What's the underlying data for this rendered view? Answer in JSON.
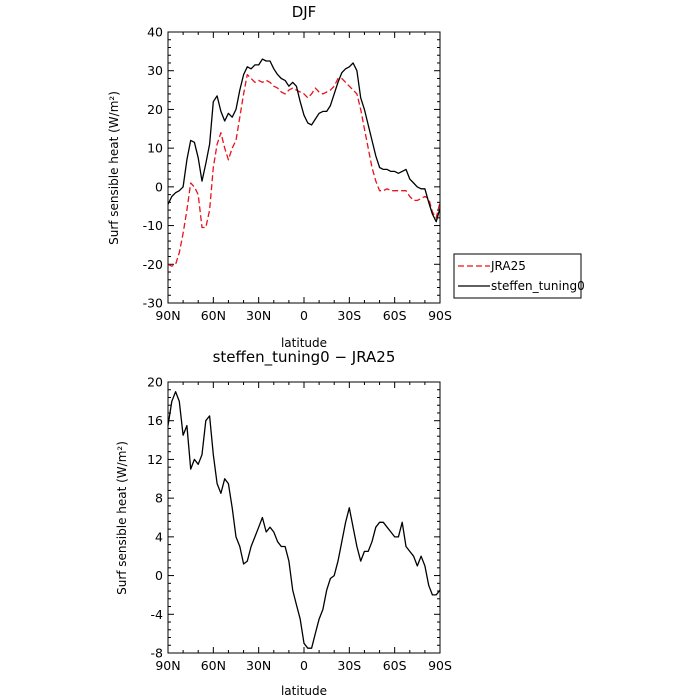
{
  "chart_data": [
    {
      "type": "line",
      "title": "DJF",
      "xlabel": "latitude",
      "ylabel": "Surf sensible heat (W/m²)",
      "xlim": [
        90,
        -90
      ],
      "ylim": [
        -30,
        40
      ],
      "x_ticks": [
        90,
        60,
        30,
        0,
        -30,
        -60,
        -90
      ],
      "x_tick_labels": [
        "90N",
        "60N",
        "30N",
        "0",
        "30S",
        "60S",
        "90S"
      ],
      "y_ticks": [
        -30,
        -20,
        -10,
        0,
        10,
        20,
        30,
        40
      ],
      "y_tick_labels": [
        "-30",
        "-20",
        "-10",
        "0",
        "10",
        "20",
        "30",
        "40"
      ],
      "legend": "right-outside",
      "series": [
        {
          "name": "JRA25",
          "color": "#e8121b",
          "dash": "dashed",
          "x": [
            90,
            87.5,
            85,
            82.5,
            80,
            77.5,
            75,
            72.5,
            70,
            67.5,
            65,
            62.5,
            60,
            57.5,
            55,
            52.5,
            50,
            47.5,
            45,
            42.5,
            40,
            37.5,
            35,
            32.5,
            30,
            27.5,
            25,
            22.5,
            20,
            17.5,
            15,
            12.5,
            10,
            7.5,
            5,
            2.5,
            0,
            -2.5,
            -5,
            -7.5,
            -10,
            -12.5,
            -15,
            -17.5,
            -20,
            -22.5,
            -25,
            -27.5,
            -30,
            -32.5,
            -35,
            -37.5,
            -40,
            -42.5,
            -45,
            -47.5,
            -50,
            -52.5,
            -55,
            -57.5,
            -60,
            -62.5,
            -65,
            -67.5,
            -70,
            -72.5,
            -75,
            -77.5,
            -80,
            -82.5,
            -85,
            -87.5,
            -90
          ],
          "values": [
            -20,
            -20.5,
            -20,
            -17,
            -12,
            -6,
            1,
            0,
            -2,
            -10.5,
            -10.5,
            -6,
            5,
            11,
            14,
            10,
            7,
            10,
            12,
            18,
            24,
            29,
            28,
            27,
            27.5,
            27,
            27.5,
            27,
            26,
            25.5,
            24.5,
            24,
            25,
            25.5,
            25,
            24.5,
            24,
            23,
            24,
            25.5,
            24.5,
            24,
            24.5,
            25,
            26,
            28,
            28,
            27,
            26,
            25,
            24,
            20,
            15,
            10,
            5,
            1.5,
            -1,
            -1,
            -0.5,
            -1,
            -1,
            -1,
            -1,
            -1,
            -2.5,
            -3.5,
            -3.5,
            -3,
            -2.5,
            -3,
            -6.5,
            -8,
            -4
          ]
        },
        {
          "name": "steffen_tuning0",
          "color": "#000000",
          "dash": "solid",
          "x": [
            90,
            87.5,
            85,
            82.5,
            80,
            77.5,
            75,
            72.5,
            70,
            67.5,
            65,
            62.5,
            60,
            57.5,
            55,
            52.5,
            50,
            47.5,
            45,
            42.5,
            40,
            37.5,
            35,
            32.5,
            30,
            27.5,
            25,
            22.5,
            20,
            17.5,
            15,
            12.5,
            10,
            7.5,
            5,
            2.5,
            0,
            -2.5,
            -5,
            -7.5,
            -10,
            -12.5,
            -15,
            -17.5,
            -20,
            -22.5,
            -25,
            -27.5,
            -30,
            -32.5,
            -35,
            -37.5,
            -40,
            -42.5,
            -45,
            -47.5,
            -50,
            -52.5,
            -55,
            -57.5,
            -60,
            -62.5,
            -65,
            -67.5,
            -70,
            -72.5,
            -75,
            -77.5,
            -80,
            -82.5,
            -85,
            -87.5,
            -90
          ],
          "values": [
            -4.5,
            -2.5,
            -1.5,
            -1,
            0,
            7,
            12,
            11.5,
            7.5,
            1.5,
            6,
            11,
            22,
            23.5,
            19.5,
            17,
            19,
            18,
            20,
            25,
            29,
            31,
            30.5,
            31.5,
            31.5,
            33,
            32.5,
            32.5,
            30.5,
            29,
            28,
            27.5,
            26,
            27,
            26,
            22,
            18.5,
            16.5,
            16,
            17.5,
            19,
            19.5,
            19.5,
            21,
            24,
            27,
            29.5,
            30.5,
            31,
            32,
            30,
            23,
            20,
            16,
            12,
            8,
            5,
            4.5,
            4.5,
            4,
            4,
            3.5,
            4,
            4.5,
            2,
            1,
            0,
            -0.5,
            -0.5,
            -4,
            -7,
            -9,
            -5.5
          ]
        }
      ]
    },
    {
      "type": "line",
      "title": "steffen_tuning0 − JRA25",
      "xlabel": "latitude",
      "ylabel": "Surf sensible heat (W/m²)",
      "xlim": [
        90,
        -90
      ],
      "ylim": [
        -8,
        20
      ],
      "x_ticks": [
        90,
        60,
        30,
        0,
        -30,
        -60,
        -90
      ],
      "x_tick_labels": [
        "90N",
        "60N",
        "30N",
        "0",
        "30S",
        "60S",
        "90S"
      ],
      "y_ticks": [
        -8,
        -4,
        0,
        4,
        8,
        12,
        16,
        20
      ],
      "y_tick_labels": [
        "-8",
        "-4",
        "0",
        "4",
        "8",
        "12",
        "16",
        "20"
      ],
      "series": [
        {
          "color": "#000000",
          "dash": "solid",
          "x": [
            90,
            87.5,
            85,
            82.5,
            80,
            77.5,
            75,
            72.5,
            70,
            67.5,
            65,
            62.5,
            60,
            57.5,
            55,
            52.5,
            50,
            47.5,
            45,
            42.5,
            40,
            37.5,
            35,
            32.5,
            30,
            27.5,
            25,
            22.5,
            20,
            17.5,
            15,
            12.5,
            10,
            7.5,
            5,
            2.5,
            0,
            -2.5,
            -5,
            -7.5,
            -10,
            -12.5,
            -15,
            -17.5,
            -20,
            -22.5,
            -25,
            -27.5,
            -30,
            -32.5,
            -35,
            -37.5,
            -40,
            -42.5,
            -45,
            -47.5,
            -50,
            -52.5,
            -55,
            -57.5,
            -60,
            -62.5,
            -65,
            -67.5,
            -70,
            -72.5,
            -75,
            -77.5,
            -80,
            -82.5,
            -85,
            -87.5,
            -90
          ],
          "values": [
            15.5,
            18,
            19,
            18,
            14.5,
            15.5,
            11,
            12,
            11.5,
            12.5,
            16,
            16.5,
            12.5,
            9.5,
            8.5,
            10,
            9.5,
            7,
            4,
            3,
            1.2,
            1.5,
            3,
            4,
            5,
            6,
            4.5,
            5,
            4.5,
            3.5,
            3,
            3,
            1.5,
            -1.5,
            -3,
            -4.5,
            -7,
            -7.5,
            -7.5,
            -6,
            -4.5,
            -3.5,
            -1.5,
            -0.3,
            0,
            1.5,
            3.5,
            5.5,
            7,
            5,
            3,
            1.5,
            2.5,
            2.5,
            3.5,
            5,
            5.5,
            5.5,
            5,
            4.5,
            4,
            4,
            5.5,
            3,
            2.5,
            2,
            1,
            2,
            1,
            -1,
            -2,
            -2,
            -1.5
          ]
        }
      ]
    }
  ]
}
